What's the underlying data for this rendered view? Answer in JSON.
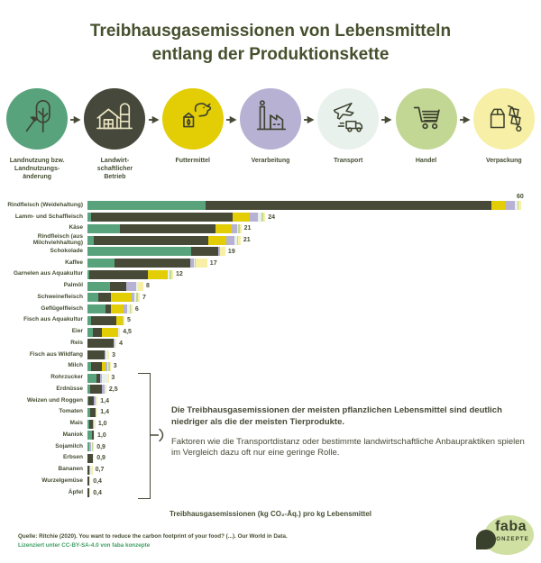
{
  "title": {
    "line1": "Treibhausgasemissionen von Lebensmitteln",
    "line2": "entlang der Produktionskette"
  },
  "supply_chain": {
    "stages": [
      {
        "label": "Landnutzung bzw.\nLandnutzungs-\nänderung",
        "icon": "tree-axe-icon",
        "color": "#58a27c",
        "icon_color": "#3e422f"
      },
      {
        "label": "Landwirt-\nschaftlicher\nBetrieb",
        "icon": "farm-icon",
        "color": "#45483a",
        "icon_color": "#ece5c3"
      },
      {
        "label": "Futtermittel",
        "icon": "cow-feed-icon",
        "color": "#e3cd05",
        "icon_color": "#3e422f"
      },
      {
        "label": "Verarbeitung",
        "icon": "factory-icon",
        "color": "#b7b1d3",
        "icon_color": "#3e422f"
      },
      {
        "label": "Transport",
        "icon": "plane-truck-icon",
        "color": "#e9f1ec",
        "icon_color": "#3e422f"
      },
      {
        "label": "Handel",
        "icon": "cart-icon",
        "color": "#c3d795",
        "icon_color": "#3e422f"
      },
      {
        "label": "Verpackung",
        "icon": "packaging-icon",
        "color": "#f6efa5",
        "icon_color": "#3e422f"
      }
    ]
  },
  "chart_data": {
    "type": "bar",
    "stacked": true,
    "orientation": "horizontal",
    "xlabel": "Treibhausgasemissionen (kg CO₂-Äq.) pro kg Lebensmittel",
    "xlim": [
      0,
      60
    ],
    "grid": false,
    "stages": [
      {
        "key": "landnutzung",
        "label": "Landnutzung bzw. Landnutzungsänderung",
        "color": "#58a27c"
      },
      {
        "key": "betrieb",
        "label": "Landwirtschaftlicher Betrieb",
        "color": "#474a37"
      },
      {
        "key": "futtermittel",
        "label": "Futtermittel",
        "color": "#e3cd05"
      },
      {
        "key": "verarbeitung",
        "label": "Verarbeitung",
        "color": "#b7b1d3"
      },
      {
        "key": "transport",
        "label": "Transport",
        "color": "#e9f1ec"
      },
      {
        "key": "handel",
        "label": "Handel",
        "color": "#c3d795"
      },
      {
        "key": "verpackung",
        "label": "Verpackung",
        "color": "#f6efa5"
      }
    ],
    "foods": [
      {
        "label": "Rindfleisch (Weidehaltung)",
        "value_label": "60",
        "value_above": true,
        "segments": [
          16.3,
          39.4,
          1.9,
          1.3,
          0.3,
          0.2,
          0.4
        ]
      },
      {
        "label": "Lamm- und Schaffleisch",
        "value_label": "24",
        "segments": [
          0.5,
          19.5,
          2.4,
          1.1,
          0.5,
          0.2,
          0.3
        ]
      },
      {
        "label": "Käse",
        "value_label": "21",
        "segments": [
          4.5,
          13.1,
          2.3,
          0.7,
          0.1,
          0.3,
          0.2
        ]
      },
      {
        "label": "Rindfleisch (aus Milchviehhaltung)",
        "value_label": "21",
        "segments": [
          0.9,
          15.7,
          2.5,
          1.1,
          0.4,
          0.2,
          0.3
        ]
      },
      {
        "label": "Schokolade",
        "value_label": "19",
        "segments": [
          14.3,
          3.7,
          0,
          0.2,
          0.1,
          0,
          0.7
        ]
      },
      {
        "label": "Kaffee",
        "value_label": "17",
        "segments": [
          3.7,
          10.4,
          0,
          0.6,
          0.1,
          0.1,
          1.6
        ]
      },
      {
        "label": "Garnelen aus Aquakultur",
        "value_label": "12",
        "segments": [
          0.2,
          8.1,
          2.8,
          0,
          0.2,
          0.2,
          0.3
        ]
      },
      {
        "label": "Palmöl",
        "value_label": "8",
        "segments": [
          3.1,
          2.3,
          0,
          1.3,
          0.2,
          0,
          0.8
        ]
      },
      {
        "label": "Schweinefleisch",
        "value_label": "7",
        "segments": [
          1.5,
          1.7,
          2.9,
          0.3,
          0.3,
          0.2,
          0.3
        ]
      },
      {
        "label": "Geflügelfleisch",
        "value_label": "6",
        "segments": [
          2.5,
          0.7,
          1.8,
          0.5,
          0.3,
          0.2,
          0.2
        ]
      },
      {
        "label": "Fisch aus Aquakultur",
        "value_label": "5",
        "segments": [
          0.5,
          3.5,
          0.8,
          0,
          0.1,
          0.1,
          0.1
        ]
      },
      {
        "label": "Eier",
        "value_label": "4,5",
        "segments": [
          0.7,
          1.3,
          2.2,
          0,
          0.1,
          0,
          0.2
        ]
      },
      {
        "label": "Reis",
        "value_label": "4",
        "segments": [
          0,
          3.6,
          0,
          0.1,
          0.1,
          0.1,
          0.1
        ]
      },
      {
        "label": "Fisch aus Wildfang",
        "value_label": "3",
        "segments": [
          0,
          2.4,
          0,
          0.1,
          0.3,
          0.1,
          0.1
        ]
      },
      {
        "label": "Milch",
        "value_label": "3",
        "segments": [
          0.5,
          1.5,
          0.5,
          0.2,
          0.1,
          0.3,
          0.1
        ]
      },
      {
        "label": "Rohrzucker",
        "value_label": "3",
        "segments": [
          1.2,
          0.5,
          0,
          0.3,
          0.8,
          0,
          0.1
        ]
      },
      {
        "label": "Erdnüsse",
        "value_label": "2,5",
        "segments": [
          0.4,
          1.6,
          0,
          0.4,
          0.1,
          0,
          0.1
        ]
      },
      {
        "label": "Weizen und Roggen",
        "value_label": "1,4",
        "segments": [
          0.1,
          0.8,
          0,
          0.2,
          0.1,
          0.1,
          0.1
        ]
      },
      {
        "label": "Tomaten",
        "value_label": "1,4",
        "segments": [
          0.4,
          0.7,
          0,
          0,
          0.1,
          0,
          0.2
        ]
      },
      {
        "label": "Mais",
        "value_label": "1,0",
        "segments": [
          0.3,
          0.5,
          0,
          0.1,
          0.1,
          0,
          0.1
        ]
      },
      {
        "label": "Maniok",
        "value_label": "1,0",
        "segments": [
          0.6,
          0.3,
          0,
          0,
          0.1,
          0,
          0
        ]
      },
      {
        "label": "Sojamilch",
        "value_label": "0,9",
        "segments": [
          0.2,
          0.1,
          0,
          0.2,
          0.1,
          0.2,
          0.1
        ]
      },
      {
        "label": "Erbsen",
        "value_label": "0,9",
        "segments": [
          0,
          0.7,
          0,
          0,
          0.1,
          0,
          0.1
        ]
      },
      {
        "label": "Bananen",
        "value_label": "0,7",
        "segments": [
          0,
          0.3,
          0,
          0.1,
          0.2,
          0,
          0.1
        ]
      },
      {
        "label": "Wurzelgemüse",
        "value_label": "0,4",
        "segments": [
          0,
          0.2,
          0,
          0,
          0.1,
          0,
          0.1
        ]
      },
      {
        "label": "Äpfel",
        "value_label": "0,4",
        "segments": [
          0,
          0.2,
          0,
          0,
          0.1,
          0,
          0.1
        ]
      }
    ]
  },
  "annotation": {
    "bold_text": "Die Treibhausgasemissionen der meisten pflanzlichen Lebensmittel sind deutlich niedriger als die der meisten Tierprodukte.",
    "text": "Faktoren wie die Transportdistanz oder bestimmte landwirtschaftliche Anbaupraktiken spielen im Vergleich dazu oft nur eine geringe Rolle."
  },
  "footer": {
    "source": "Quelle: Ritchie (2020). You want to reduce the carbon footprint of your food? (...). Our World in Data.",
    "license": "Lizenziert unter CC-BY-SA-4.0 von faba konzepte"
  },
  "logo": {
    "name": "faba",
    "subtitle": "KONZEPTE"
  },
  "colors": {
    "title": "#46502e",
    "text": "#454f33",
    "license_green": "#3f9e63",
    "logo_blob": "#cfe0a2"
  }
}
